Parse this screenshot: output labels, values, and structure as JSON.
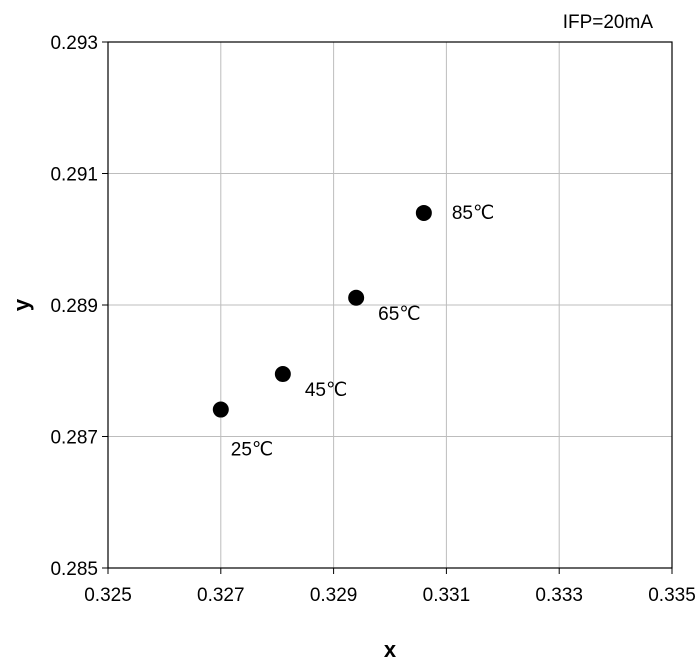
{
  "chart_data": {
    "type": "scatter",
    "title": "",
    "condition": "IFP=20mA",
    "xlabel": "x",
    "ylabel": "y",
    "xlim": [
      0.325,
      0.335
    ],
    "ylim": [
      0.285,
      0.293
    ],
    "xticks": [
      {
        "value": 0.325,
        "label": "0.325"
      },
      {
        "value": 0.327,
        "label": "0.327"
      },
      {
        "value": 0.329,
        "label": "0.329"
      },
      {
        "value": 0.331,
        "label": "0.331"
      },
      {
        "value": 0.333,
        "label": "0.333"
      },
      {
        "value": 0.335,
        "label": "0.335"
      }
    ],
    "yticks": [
      {
        "value": 0.285,
        "label": "0.285"
      },
      {
        "value": 0.287,
        "label": "0.287"
      },
      {
        "value": 0.289,
        "label": "0.289"
      },
      {
        "value": 0.291,
        "label": "0.291"
      },
      {
        "value": 0.293,
        "label": "0.293"
      }
    ],
    "grid": true,
    "marker_color": "#000000",
    "points": [
      {
        "x": 0.327,
        "y": 0.28741,
        "label": "25℃",
        "label_pos": "below-right"
      },
      {
        "x": 0.3281,
        "y": 0.28795,
        "label": "45℃",
        "label_pos": "right-below"
      },
      {
        "x": 0.3294,
        "y": 0.28911,
        "label": "65℃",
        "label_pos": "right-below"
      },
      {
        "x": 0.3306,
        "y": 0.2904,
        "label": "85℃",
        "label_pos": "right"
      }
    ]
  }
}
